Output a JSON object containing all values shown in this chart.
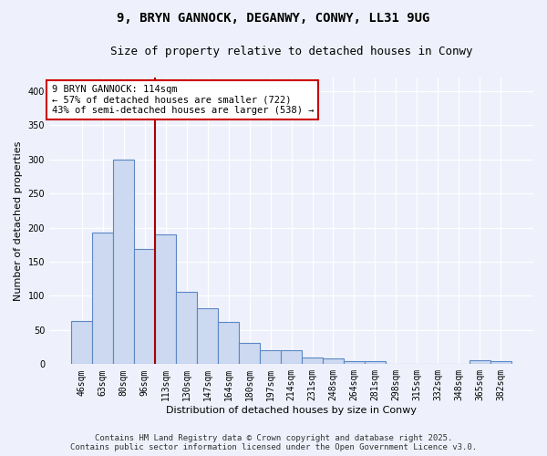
{
  "title": "9, BRYN GANNOCK, DEGANWY, CONWY, LL31 9UG",
  "subtitle": "Size of property relative to detached houses in Conwy",
  "xlabel": "Distribution of detached houses by size in Conwy",
  "ylabel": "Number of detached properties",
  "categories": [
    "46sqm",
    "63sqm",
    "80sqm",
    "96sqm",
    "113sqm",
    "130sqm",
    "147sqm",
    "164sqm",
    "180sqm",
    "197sqm",
    "214sqm",
    "231sqm",
    "248sqm",
    "264sqm",
    "281sqm",
    "298sqm",
    "315sqm",
    "332sqm",
    "348sqm",
    "365sqm",
    "382sqm"
  ],
  "values": [
    63,
    193,
    300,
    169,
    190,
    106,
    82,
    62,
    31,
    21,
    21,
    10,
    8,
    5,
    4,
    1,
    1,
    1,
    0,
    6,
    5
  ],
  "bar_color": "#ccd9f0",
  "bar_edge_color": "#5b87c5",
  "vline_x_index": 4,
  "vline_color": "#aa0000",
  "annotation_text": "9 BRYN GANNOCK: 114sqm\n← 57% of detached houses are smaller (722)\n43% of semi-detached houses are larger (538) →",
  "annotation_box_color": "#ffffff",
  "annotation_box_edge": "#cc0000",
  "ylim": [
    0,
    420
  ],
  "yticks": [
    0,
    50,
    100,
    150,
    200,
    250,
    300,
    350,
    400
  ],
  "background_color": "#eef1fb",
  "grid_color": "#ffffff",
  "footer_line1": "Contains HM Land Registry data © Crown copyright and database right 2025.",
  "footer_line2": "Contains public sector information licensed under the Open Government Licence v3.0.",
  "title_fontsize": 10,
  "subtitle_fontsize": 9,
  "xlabel_fontsize": 8,
  "ylabel_fontsize": 8,
  "tick_fontsize": 7,
  "annotation_fontsize": 7.5,
  "footer_fontsize": 6.5
}
